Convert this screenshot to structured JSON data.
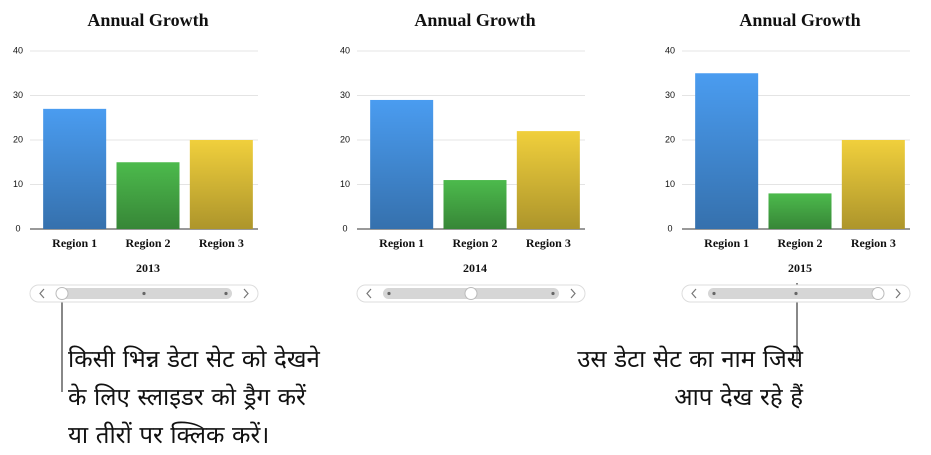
{
  "chart_data": [
    {
      "type": "bar",
      "title": "Annual Growth",
      "categories": [
        "Region 1",
        "Region 2",
        "Region 3"
      ],
      "values": [
        27,
        15,
        20
      ],
      "colors": [
        "#4a9cf0",
        "#4cba4c",
        "#f0cf3c"
      ],
      "ylim": [
        0,
        40
      ],
      "yticks": [
        0,
        10,
        20,
        30,
        40
      ],
      "grid": true,
      "xlabel": "2013"
    },
    {
      "type": "bar",
      "title": "Annual Growth",
      "categories": [
        "Region 1",
        "Region 2",
        "Region 3"
      ],
      "values": [
        29,
        11,
        22
      ],
      "colors": [
        "#4a9cf0",
        "#4cba4c",
        "#f0cf3c"
      ],
      "ylim": [
        0,
        40
      ],
      "yticks": [
        0,
        10,
        20,
        30,
        40
      ],
      "grid": true,
      "xlabel": "2014"
    },
    {
      "type": "bar",
      "title": "Annual Growth",
      "categories": [
        "Region 1",
        "Region 2",
        "Region 3"
      ],
      "values": [
        35,
        8,
        20
      ],
      "colors": [
        "#4a9cf0",
        "#4cba4c",
        "#f0cf3c"
      ],
      "ylim": [
        0,
        40
      ],
      "yticks": [
        0,
        10,
        20,
        30,
        40
      ],
      "grid": true,
      "xlabel": "2015"
    }
  ],
  "annotations": [
    {
      "lines": [
        "किसी भिन्न डेटा सेट को देखने",
        "के लिए स्लाइडर को ड्रैग करें",
        "या तीरों पर क्लिक करें।"
      ]
    },
    {
      "lines": [
        "उस डेटा सेट का नाम जिसे",
        "आप देख रहे हैं"
      ]
    }
  ]
}
